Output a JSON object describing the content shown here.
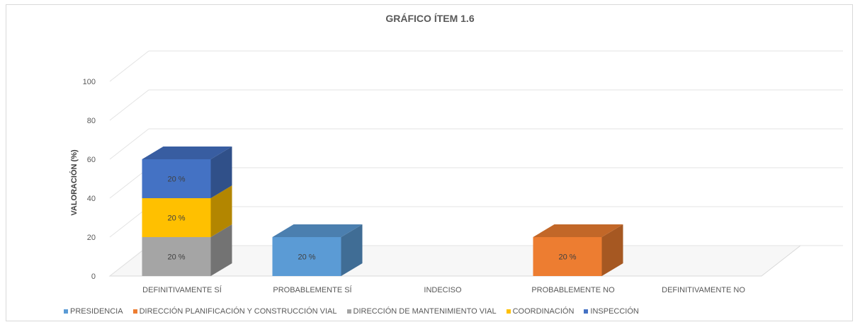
{
  "chart_data": {
    "type": "bar",
    "stacked": true,
    "style": "3d-column",
    "title": "GRÁFICO ÍTEM 1.6",
    "ylabel": "VALORACIÓN (%)",
    "xlabel": "",
    "ylim": [
      0,
      100
    ],
    "yticks": [
      0,
      20,
      40,
      60,
      80,
      100
    ],
    "grid": true,
    "legend_position": "bottom",
    "categories": [
      "DEFINITIVAMENTE SÍ",
      "PROBABLEMENTE SÍ",
      "INDECISO",
      "PROBABLEMENTE NO",
      "DEFINITIVAMENTE NO"
    ],
    "series": [
      {
        "name": "PRESIDENCIA",
        "color": "#5b9bd5",
        "values": [
          0,
          20,
          0,
          0,
          0
        ],
        "labels": [
          "",
          "20 %",
          "",
          "",
          ""
        ]
      },
      {
        "name": "DIRECCIÓN PLANIFICACIÓN Y CONSTRUCCIÓN VIAL",
        "color": "#ed7d31",
        "values": [
          0,
          0,
          0,
          20,
          0
        ],
        "labels": [
          "",
          "",
          "",
          "20 %",
          ""
        ]
      },
      {
        "name": "DIRECCIÓN DE MANTENIMIENTO VIAL",
        "color": "#a5a5a5",
        "values": [
          20,
          0,
          0,
          0,
          0
        ],
        "labels": [
          "20 %",
          "",
          "",
          "",
          ""
        ]
      },
      {
        "name": "COORDINACIÓN",
        "color": "#ffc000",
        "values": [
          20,
          0,
          0,
          0,
          0
        ],
        "labels": [
          "20 %",
          "",
          "",
          "",
          ""
        ]
      },
      {
        "name": "INSPECCIÓN",
        "color": "#4472c4",
        "values": [
          20,
          0,
          0,
          0,
          0
        ],
        "labels": [
          "20 %",
          "",
          "",
          "",
          ""
        ]
      }
    ]
  }
}
